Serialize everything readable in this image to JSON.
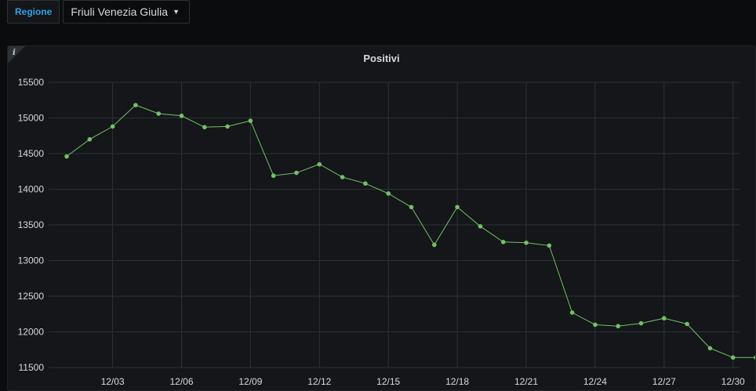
{
  "variables": {
    "label": "Regione",
    "selected": "Friuli Venezia Giulia"
  },
  "panel": {
    "title": "Positivi",
    "info_icon": "info-icon"
  },
  "colors": {
    "series": "#73bf69",
    "grid": "#2c3235",
    "text": "#d8d9da",
    "accent": "#33a2e5"
  },
  "chart_data": {
    "type": "line",
    "title": "Positivi",
    "xlabel": "",
    "ylabel": "",
    "grid": true,
    "ylim": [
      11500,
      15500
    ],
    "yticks": [
      11500,
      12000,
      12500,
      13000,
      13500,
      14000,
      14500,
      15000,
      15500
    ],
    "xticks": [
      "12/03",
      "12/06",
      "12/09",
      "12/12",
      "12/15",
      "12/18",
      "12/21",
      "12/24",
      "12/27",
      "12/30"
    ],
    "x": [
      "12/01",
      "12/02",
      "12/03",
      "12/04",
      "12/05",
      "12/06",
      "12/07",
      "12/08",
      "12/09",
      "12/10",
      "12/11",
      "12/12",
      "12/13",
      "12/14",
      "12/15",
      "12/16",
      "12/17",
      "12/18",
      "12/19",
      "12/20",
      "12/21",
      "12/22",
      "12/23",
      "12/24",
      "12/25",
      "12/26",
      "12/27",
      "12/28",
      "12/29",
      "12/30",
      "12/31"
    ],
    "series": [
      {
        "values": [
          14460,
          14700,
          14880,
          15180,
          15060,
          15030,
          14870,
          14880,
          14960,
          14190,
          14230,
          14350,
          14170,
          14080,
          13940,
          13750,
          13220,
          13750,
          13480,
          13260,
          13250,
          13210,
          12270,
          12100,
          12080,
          12120,
          12190,
          12110,
          11770,
          11640,
          11640
        ]
      }
    ]
  }
}
